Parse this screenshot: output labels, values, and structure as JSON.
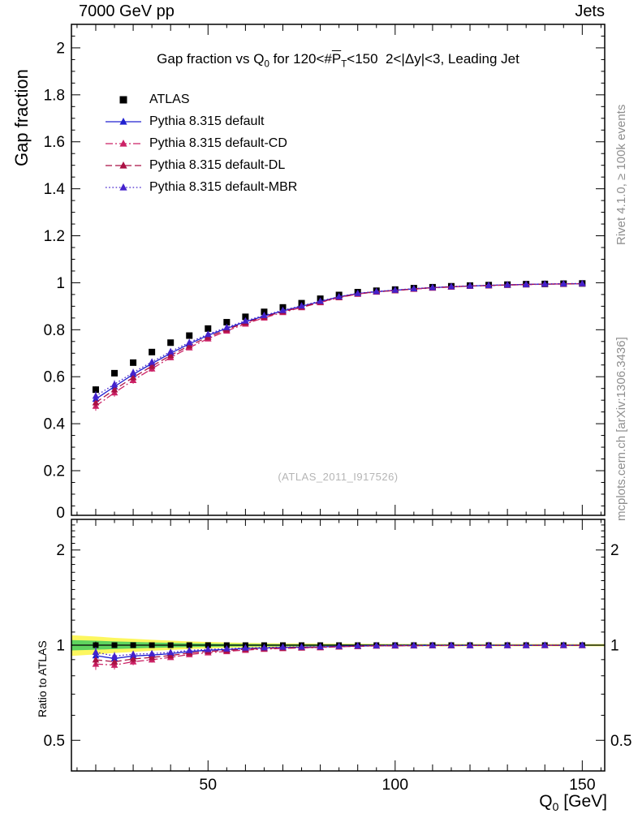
{
  "header": {
    "left": "7000 GeV pp",
    "right": "Jets"
  },
  "title": {
    "part1": "Gap fraction vs Q",
    "sub1": "0",
    "part2": " for 120<#",
    "pbar": "P",
    "sub2": "T",
    "part3": "<150  2<|Δy|<3, Leading Jet"
  },
  "ylabel_main": "Gap fraction",
  "ylabel_ratio": "Ratio to ATLAS",
  "xlabel": {
    "part1": "Q",
    "sub": "0",
    "part2": " [GeV]"
  },
  "side_right_top": "Rivet 4.1.0, ≥ 100k events",
  "side_right_bottom": "mcplots.cern.ch [arXiv:1306.3436]",
  "watermark": "(ATLAS_2011_I917526)",
  "chart_data": {
    "type": "line",
    "x": [
      20,
      25,
      30,
      35,
      40,
      45,
      50,
      55,
      60,
      65,
      70,
      75,
      80,
      85,
      90,
      95,
      100,
      105,
      110,
      115,
      120,
      125,
      130,
      135,
      140,
      145,
      150
    ],
    "data_series": {
      "name": "ATLAS",
      "marker": "square",
      "color": "#000000",
      "values": [
        0.545,
        0.615,
        0.66,
        0.705,
        0.745,
        0.775,
        0.805,
        0.832,
        0.855,
        0.876,
        0.895,
        0.913,
        0.932,
        0.948,
        0.96,
        0.966,
        0.971,
        0.977,
        0.981,
        0.985,
        0.988,
        0.99,
        0.992,
        0.994,
        0.995,
        0.996,
        0.997
      ]
    },
    "series": [
      {
        "name": "Pythia 8.315 default",
        "color": "#2020d0",
        "linestyle": "solid",
        "marker": "triangle",
        "values": [
          0.505,
          0.558,
          0.61,
          0.656,
          0.7,
          0.74,
          0.776,
          0.806,
          0.834,
          0.858,
          0.88,
          0.9,
          0.92,
          0.94,
          0.954,
          0.962,
          0.968,
          0.974,
          0.979,
          0.983,
          0.986,
          0.989,
          0.991,
          0.993,
          0.994,
          0.995,
          0.996
        ]
      },
      {
        "name": "Pythia 8.315 default-CD",
        "color": "#cc2266",
        "linestyle": "dashdot",
        "marker": "triangle",
        "values": [
          0.475,
          0.532,
          0.585,
          0.634,
          0.682,
          0.724,
          0.762,
          0.795,
          0.825,
          0.851,
          0.874,
          0.895,
          0.916,
          0.937,
          0.952,
          0.961,
          0.967,
          0.973,
          0.978,
          0.982,
          0.986,
          0.988,
          0.99,
          0.992,
          0.994,
          0.995,
          0.996
        ]
      },
      {
        "name": "Pythia 8.315 default-DL",
        "color": "#aa1144",
        "linestyle": "dashed",
        "marker": "triangle",
        "values": [
          0.49,
          0.545,
          0.597,
          0.645,
          0.691,
          0.732,
          0.769,
          0.801,
          0.83,
          0.855,
          0.877,
          0.897,
          0.918,
          0.938,
          0.953,
          0.962,
          0.967,
          0.974,
          0.979,
          0.983,
          0.986,
          0.988,
          0.991,
          0.993,
          0.994,
          0.995,
          0.996
        ]
      },
      {
        "name": "Pythia 8.315 default-MBR",
        "color": "#4422cc",
        "linestyle": "dotted",
        "marker": "triangle",
        "values": [
          0.518,
          0.568,
          0.618,
          0.663,
          0.707,
          0.746,
          0.781,
          0.81,
          0.838,
          0.861,
          0.883,
          0.902,
          0.922,
          0.941,
          0.955,
          0.963,
          0.969,
          0.975,
          0.98,
          0.984,
          0.987,
          0.989,
          0.991,
          0.993,
          0.995,
          0.996,
          0.997
        ]
      }
    ],
    "yerr_data": [
      0.014,
      0.012,
      0.011,
      0.01,
      0.009,
      0.008,
      0.007,
      0.007,
      0.006,
      0.006,
      0.005,
      0.005,
      0.004,
      0.004,
      0.004,
      0.003,
      0.003,
      0.003,
      0.003,
      0.003,
      0.002,
      0.002,
      0.002,
      0.002,
      0.002,
      0.002,
      0.002
    ],
    "yerr_model": [
      0.02,
      0.017,
      0.015,
      0.013,
      0.012,
      0.01,
      0.009,
      0.008,
      0.007,
      0.007,
      0.006,
      0.006,
      0.005,
      0.005,
      0.004,
      0.004,
      0.004,
      0.003,
      0.003,
      0.003,
      0.003,
      0.003,
      0.002,
      0.002,
      0.002,
      0.002,
      0.002
    ],
    "xlim": [
      13.5,
      156
    ],
    "ylim_main": [
      0.01,
      2.1
    ],
    "ylim_ratio": [
      0.4,
      2.5
    ],
    "ratio_log": true,
    "xticks_major": [
      50,
      100,
      150
    ],
    "yticks_main": [
      0.2,
      0.4,
      0.6,
      0.8,
      1,
      1.2,
      1.4,
      1.6,
      1.8,
      2
    ],
    "yticks_main_zero_label": "0",
    "yticks_ratio": [
      0.5,
      1,
      2
    ],
    "yticks_ratio_minor": [
      0.4,
      0.6,
      0.7,
      0.8,
      0.9,
      1.1,
      1.2,
      1.3,
      1.4,
      1.5,
      1.6,
      1.7,
      1.8,
      1.9,
      2.1,
      2.2,
      2.3,
      2.4
    ],
    "band": {
      "x": [
        13.5,
        20,
        25,
        30,
        35,
        40,
        45,
        50,
        55,
        60,
        70,
        80,
        100,
        156
      ],
      "yellow": [
        0.075,
        0.065,
        0.055,
        0.048,
        0.04,
        0.034,
        0.028,
        0.024,
        0.02,
        0.017,
        0.013,
        0.011,
        0.009,
        0.008
      ],
      "green": [
        0.038,
        0.033,
        0.028,
        0.024,
        0.02,
        0.017,
        0.014,
        0.012,
        0.01,
        0.009,
        0.007,
        0.006,
        0.005,
        0.004
      ],
      "yellow_color": "#fdf75f",
      "green_color": "#5fd35f"
    }
  }
}
